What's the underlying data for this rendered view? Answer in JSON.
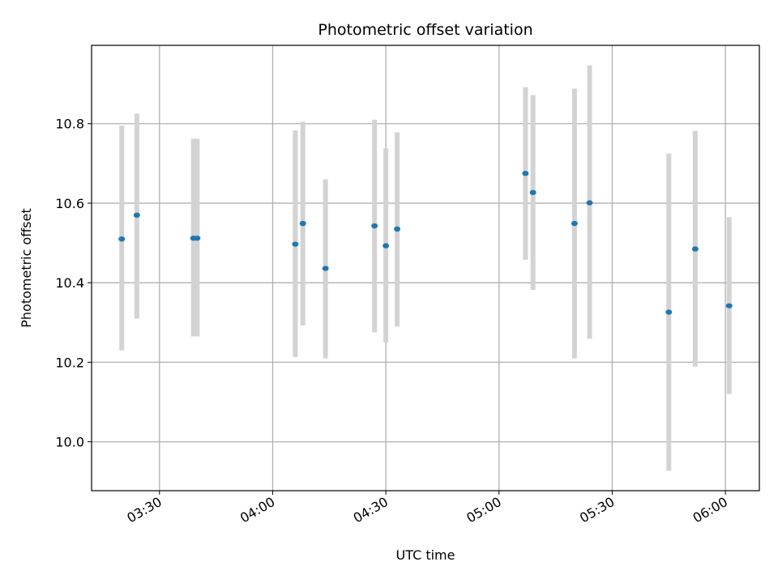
{
  "chart_data": {
    "type": "scatter",
    "title": "Photometric offset variation",
    "xlabel": "UTC time",
    "ylabel": "Photometric offset",
    "x_ticks": [
      "03:30",
      "04:00",
      "04:30",
      "05:00",
      "05:30",
      "06:00"
    ],
    "y_ticks": [
      "10.0",
      "10.2",
      "10.4",
      "10.6",
      "10.8"
    ],
    "ylim": [
      9.877,
      10.997
    ],
    "xlim": [
      "03:12",
      "06:09"
    ],
    "grid": true,
    "colors": {
      "point": "#1f77b4",
      "errorbar": "#d3d3d3",
      "grid": "#b0b0b0"
    },
    "points": [
      {
        "time": "03:20",
        "y": 10.51,
        "err_low": 10.23,
        "err_high": 10.795
      },
      {
        "time": "03:24",
        "y": 10.57,
        "err_low": 10.31,
        "err_high": 10.825
      },
      {
        "time": "03:39",
        "y": 10.512,
        "err_low": 10.265,
        "err_high": 10.762
      },
      {
        "time": "03:40",
        "y": 10.512,
        "err_low": 10.265,
        "err_high": 10.762
      },
      {
        "time": "04:06",
        "y": 10.497,
        "err_low": 10.213,
        "err_high": 10.783
      },
      {
        "time": "04:08",
        "y": 10.549,
        "err_low": 10.293,
        "err_high": 10.805
      },
      {
        "time": "04:14",
        "y": 10.436,
        "err_low": 10.21,
        "err_high": 10.66
      },
      {
        "time": "04:27",
        "y": 10.543,
        "err_low": 10.275,
        "err_high": 10.81
      },
      {
        "time": "04:30",
        "y": 10.493,
        "err_low": 10.25,
        "err_high": 10.738
      },
      {
        "time": "04:33",
        "y": 10.535,
        "err_low": 10.29,
        "err_high": 10.778
      },
      {
        "time": "05:07",
        "y": 10.675,
        "err_low": 10.458,
        "err_high": 10.892
      },
      {
        "time": "05:09",
        "y": 10.627,
        "err_low": 10.382,
        "err_high": 10.872
      },
      {
        "time": "05:20",
        "y": 10.549,
        "err_low": 10.21,
        "err_high": 10.888
      },
      {
        "time": "05:24",
        "y": 10.601,
        "err_low": 10.259,
        "err_high": 10.946
      },
      {
        "time": "05:45",
        "y": 10.326,
        "err_low": 9.927,
        "err_high": 10.725
      },
      {
        "time": "05:52",
        "y": 10.485,
        "err_low": 10.189,
        "err_high": 10.782
      },
      {
        "time": "06:01",
        "y": 10.342,
        "err_low": 10.12,
        "err_high": 10.565
      }
    ]
  }
}
